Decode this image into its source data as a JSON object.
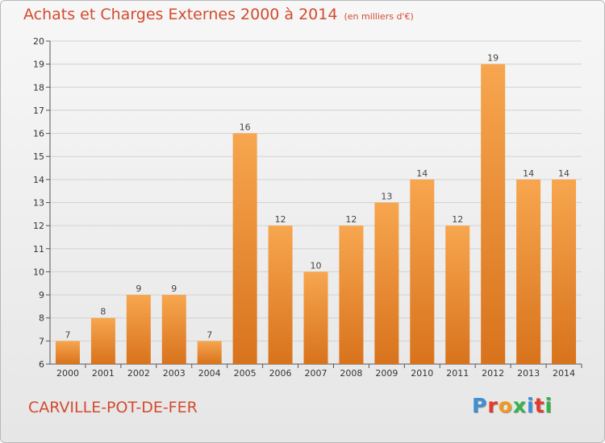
{
  "header": {
    "title": "Achats et Charges Externes 2000 à 2014",
    "subtitle": "(en milliers d'€)"
  },
  "footer": {
    "commune": "CARVILLE-POT-DE-FER",
    "brand": "Proxiti"
  },
  "colors": {
    "accent": "#d34b2e",
    "bar_light": "#f7a64f",
    "bar_dark": "#d8731c",
    "logo": [
      "#3d8fd6",
      "#e23a2e",
      "#f39a1e",
      "#36b34a",
      "#3d8fd6",
      "#e23a2e",
      "#36b34a"
    ]
  },
  "chart_data": {
    "type": "bar",
    "title": "Achats et Charges Externes 2000 à 2014",
    "subtitle": "(en milliers d'€)",
    "xlabel": "",
    "ylabel": "",
    "categories": [
      "2000",
      "2001",
      "2002",
      "2003",
      "2004",
      "2005",
      "2006",
      "2007",
      "2008",
      "2009",
      "2010",
      "2011",
      "2012",
      "2013",
      "2014"
    ],
    "values": [
      7,
      8,
      9,
      9,
      7,
      16,
      12,
      10,
      12,
      13,
      14,
      12,
      19,
      14,
      14
    ],
    "ylim": [
      6,
      20
    ],
    "yticks": [
      "6",
      "7",
      "8",
      "9",
      "10",
      "11",
      "12",
      "13",
      "14",
      "15",
      "16",
      "17",
      "18",
      "19",
      "20"
    ],
    "grid": true,
    "legend": "none"
  }
}
